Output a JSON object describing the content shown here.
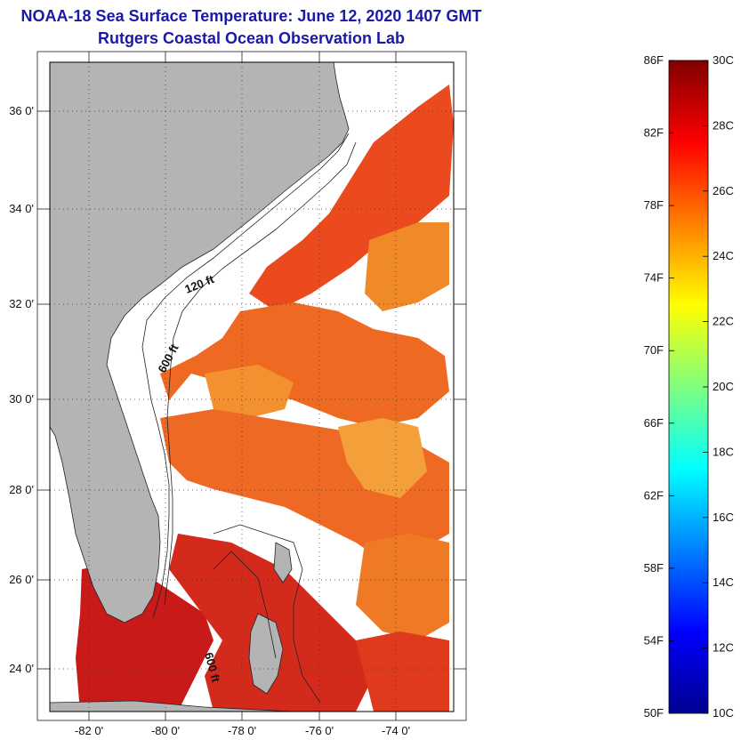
{
  "header": {
    "title": "NOAA-18 Sea Surface Temperature:  June 12, 2020 1407 GMT",
    "subtitle": "Rutgers Coastal Ocean Observation Lab"
  },
  "map": {
    "lat_ticks": [
      "36 0'",
      "34 0'",
      "32 0'",
      "30 0'",
      "28 0'",
      "26 0'",
      "24 0'"
    ],
    "lon_ticks": [
      "-82 0'",
      "-80 0'",
      "-78 0'",
      "-76 0'",
      "-74 0'"
    ],
    "contours": {
      "c120": "120 ft",
      "c600": "600 ft",
      "c600b": "600 ft"
    },
    "colors": {
      "land": "#b4b4b4",
      "cloud": "#ffffff",
      "sst_warm": "#e8401c",
      "sst_hot": "#c41818",
      "sst_mid": "#f07a20",
      "sst_cool": "#f3a93a"
    }
  },
  "colorbar": {
    "fahrenheit": [
      "86F",
      "82F",
      "78F",
      "74F",
      "70F",
      "66F",
      "62F",
      "58F",
      "54F",
      "50F"
    ],
    "celsius": [
      "30C",
      "28C",
      "26C",
      "24C",
      "22C",
      "20C",
      "18C",
      "16C",
      "14C",
      "12C",
      "10C"
    ],
    "range_c": [
      10,
      30
    ],
    "range_f": [
      50,
      86
    ]
  }
}
